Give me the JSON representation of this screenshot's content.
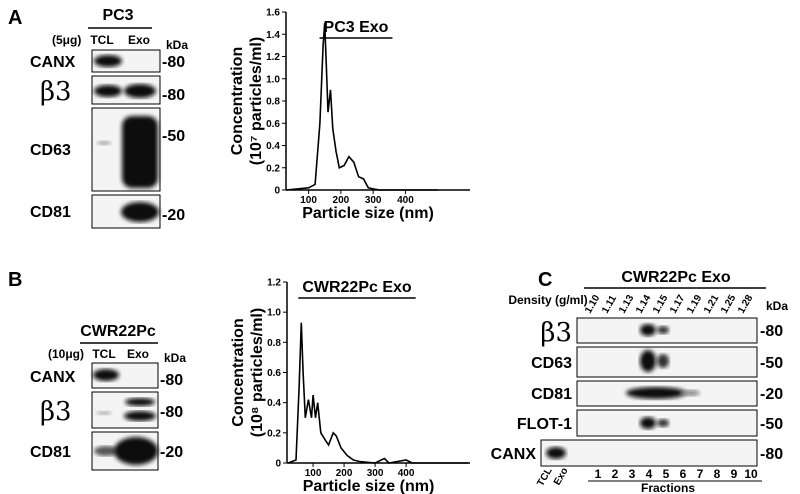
{
  "panels": [
    {
      "letter": "A",
      "cell_line": "PC3",
      "load": "(5μg)",
      "lanes": [
        "TCL",
        "Exo"
      ],
      "unit": "kDa",
      "blots": [
        {
          "label": "CANX",
          "marker": "-80"
        },
        {
          "label": "β3",
          "marker": "-80"
        },
        {
          "label": "CD63",
          "marker": "-50"
        },
        {
          "label": "CD81",
          "marker": "-20"
        }
      ]
    },
    {
      "letter": "B",
      "cell_line": "CWR22Pc",
      "load": "(10μg)",
      "lanes": [
        "TCL",
        "Exo"
      ],
      "unit": "kDa",
      "blots": [
        {
          "label": "CANX",
          "marker": "-80"
        },
        {
          "label": "β3",
          "marker": "-80"
        },
        {
          "label": "CD81",
          "marker": "-20"
        }
      ]
    },
    {
      "letter": "C",
      "title": "CWR22Pc Exo",
      "density_label": "Density (g/ml)",
      "densities": [
        "1.10",
        "1.11",
        "1.13",
        "1.14",
        "1.15",
        "1.17",
        "1.19",
        "1.21",
        "1.25",
        "1.28"
      ],
      "unit": "kDa",
      "blots": [
        {
          "label": "β3",
          "marker": "-80"
        },
        {
          "label": "CD63",
          "marker": "-50"
        },
        {
          "label": "CD81",
          "marker": "-20"
        },
        {
          "label": "FLOT-1",
          "marker": "-50"
        },
        {
          "label": "CANX",
          "marker": "-80"
        }
      ],
      "lanes": [
        "TCL",
        "Exo"
      ],
      "fractions": [
        "1",
        "2",
        "3",
        "4",
        "5",
        "6",
        "7",
        "8",
        "9",
        "10"
      ],
      "fractions_label": "Fractions"
    }
  ],
  "chart_data": [
    {
      "type": "line",
      "title": "PC3 Exo",
      "x_label": "Particle size (nm)",
      "y_label": [
        "Concentration",
        "(10⁷ particles/ml)"
      ],
      "color": "#000000",
      "x": [
        30,
        100,
        120,
        135,
        145,
        150,
        155,
        160,
        168,
        175,
        185,
        195,
        210,
        225,
        240,
        255,
        270,
        285,
        300,
        320,
        400,
        500
      ],
      "values": [
        0,
        0.02,
        0.05,
        0.6,
        1.3,
        1.5,
        1.1,
        0.7,
        0.9,
        0.55,
        0.35,
        0.2,
        0.22,
        0.3,
        0.25,
        0.12,
        0.1,
        0.02,
        0.01,
        0,
        0,
        0
      ],
      "xlim": [
        30,
        600
      ],
      "xticks": [
        100,
        200,
        300,
        400
      ],
      "ylim": [
        0,
        1.6
      ],
      "yticks": [
        0,
        0.2,
        0.4,
        0.6,
        0.8,
        {
          "value": 1,
          "label": "1.0"
        },
        1.2,
        1.4,
        1.6
      ]
    },
    {
      "type": "line",
      "title": "CWR22Pc Exo",
      "x_label": "Particle size (nm)",
      "y_label": [
        "Concentration",
        "(10⁸ particles/ml)"
      ],
      "color": "#000000",
      "x": [
        20,
        45,
        55,
        62,
        68,
        75,
        85,
        95,
        100,
        108,
        115,
        125,
        140,
        150,
        165,
        175,
        190,
        210,
        230,
        250,
        300,
        330,
        345,
        400,
        420,
        500,
        600
      ],
      "values": [
        0,
        0.02,
        0.5,
        0.93,
        0.6,
        0.3,
        0.42,
        0.3,
        0.45,
        0.3,
        0.4,
        0.2,
        0.15,
        0.12,
        0.2,
        0.18,
        0.1,
        0.05,
        0.02,
        0.01,
        0,
        0.03,
        0,
        0.02,
        0,
        0,
        0
      ],
      "xlim": [
        16,
        606
      ],
      "xticks": [
        100,
        200,
        300,
        400
      ],
      "ylim": [
        0,
        1.2
      ],
      "yticks": [
        0,
        0.2,
        0.4,
        0.6,
        0.8,
        {
          "value": 1,
          "label": "1.0"
        },
        1.2
      ]
    }
  ]
}
